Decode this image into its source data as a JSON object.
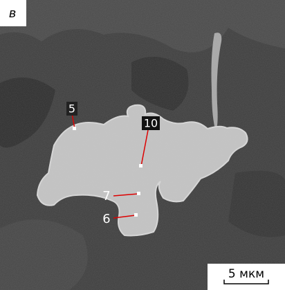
{
  "panel_label": "в",
  "points": [
    {
      "label": "5"
    },
    {
      "label": "10"
    },
    {
      "label": "7"
    },
    {
      "label": "6"
    }
  ],
  "scale_bar": "5 мкм"
}
